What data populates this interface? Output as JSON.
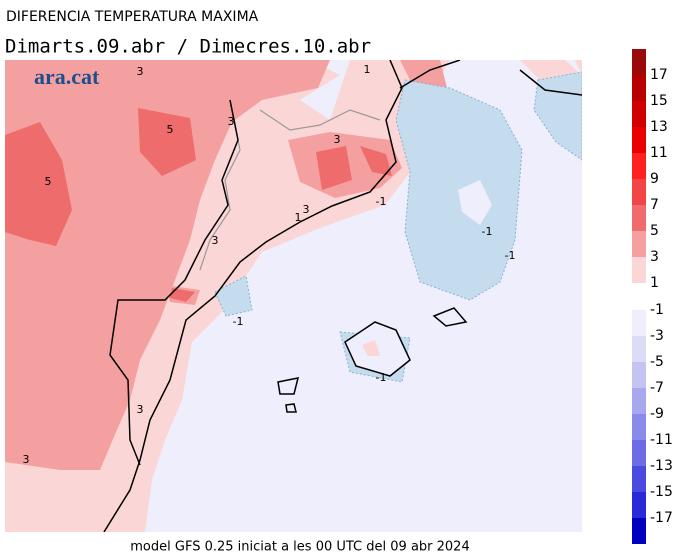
{
  "header": {
    "title": "DIFERENCIA TEMPERATURA MAXIMA",
    "subtitle": "Dimarts.09.abr / Dimecres.10.abr",
    "logo": "ara.cat"
  },
  "map": {
    "contour_labels": [
      "3",
      "1",
      "5",
      "3",
      "3",
      "5",
      "-1",
      "3",
      "1",
      "-1",
      "3",
      "-1",
      "-1",
      "-1",
      "3",
      "3"
    ]
  },
  "legend": {
    "positive": [
      {
        "label": "17",
        "color": "#9a0a0a"
      },
      {
        "label": "15",
        "color": "#b80000"
      },
      {
        "label": "13",
        "color": "#d00000"
      },
      {
        "label": "11",
        "color": "#ea0000"
      },
      {
        "label": "9",
        "color": "#ff2020"
      },
      {
        "label": "7",
        "color": "#f24646"
      },
      {
        "label": "5",
        "color": "#f06c6c"
      },
      {
        "label": "3",
        "color": "#f5a0a0"
      },
      {
        "label": "1",
        "color": "#fbd6d6"
      }
    ],
    "negative": [
      {
        "label": "-1",
        "color": "#eeeefc"
      },
      {
        "label": "-3",
        "color": "#dcdcf7"
      },
      {
        "label": "-5",
        "color": "#c4c4f2"
      },
      {
        "label": "-7",
        "color": "#a8a8ee"
      },
      {
        "label": "-9",
        "color": "#8a8ae8"
      },
      {
        "label": "-11",
        "color": "#6c6ce4"
      },
      {
        "label": "-13",
        "color": "#4a4ae0"
      },
      {
        "label": "-15",
        "color": "#2a2ad8"
      },
      {
        "label": "-17",
        "color": "#0000c0"
      }
    ]
  },
  "footer": "model GFS 0.25 iniciat a les 00 UTC del 09 abr 2024"
}
